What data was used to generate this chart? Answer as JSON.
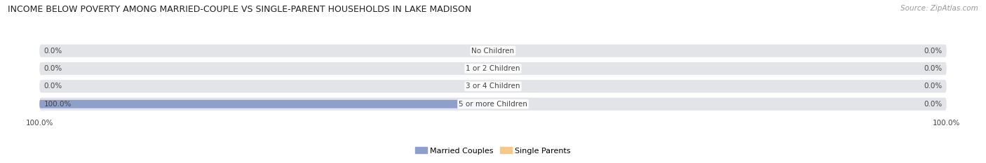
{
  "title": "INCOME BELOW POVERTY AMONG MARRIED-COUPLE VS SINGLE-PARENT HOUSEHOLDS IN LAKE MADISON",
  "source": "Source: ZipAtlas.com",
  "categories": [
    "No Children",
    "1 or 2 Children",
    "3 or 4 Children",
    "5 or more Children"
  ],
  "married_values": [
    0.0,
    0.0,
    0.0,
    100.0
  ],
  "single_values": [
    0.0,
    0.0,
    0.0,
    0.0
  ],
  "married_color": "#8F9FCC",
  "single_color": "#F5C98A",
  "bar_bg_color": "#E2E4E8",
  "row_bg_color": "#EBEBEE",
  "married_label": "Married Couples",
  "single_label": "Single Parents",
  "xlim": 100,
  "title_fontsize": 9.0,
  "source_fontsize": 7.5,
  "value_fontsize": 7.5,
  "cat_fontsize": 7.5,
  "legend_fontsize": 8.0,
  "axis_fontsize": 7.5,
  "bar_height": 0.72,
  "fig_bg_color": "#FFFFFF",
  "text_color": "#444444",
  "source_color": "#999999"
}
